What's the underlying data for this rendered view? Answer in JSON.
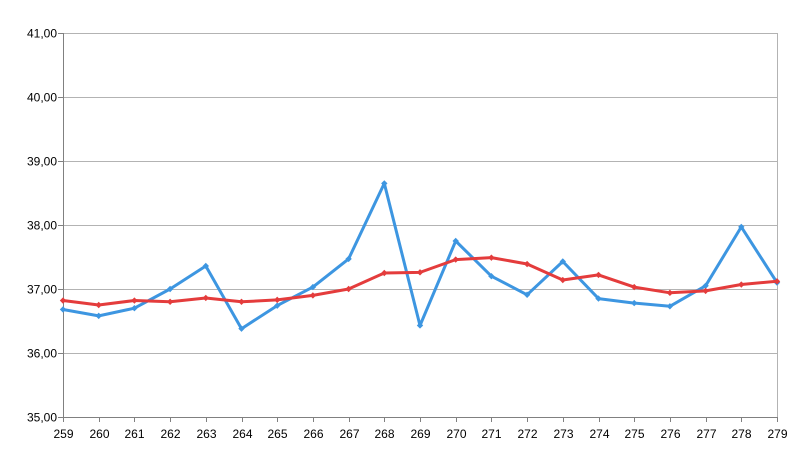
{
  "chart_data": {
    "type": "line",
    "title": "",
    "xlabel": "",
    "ylabel": "",
    "categories": [
      "259",
      "260",
      "261",
      "262",
      "263",
      "264",
      "265",
      "266",
      "267",
      "268",
      "269",
      "270",
      "271",
      "272",
      "273",
      "274",
      "275",
      "276",
      "277",
      "278",
      "279"
    ],
    "ylim": [
      35,
      41
    ],
    "yticks": [
      35,
      36,
      37,
      38,
      39,
      40,
      41
    ],
    "ytick_labels": [
      "35,00",
      "36,00",
      "37,00",
      "38,00",
      "39,00",
      "40,00",
      "41,00"
    ],
    "grid": true,
    "legend": "none",
    "series": [
      {
        "color": "#3d96e1",
        "values": [
          36.68,
          36.58,
          36.7,
          37.0,
          37.36,
          36.38,
          36.74,
          37.03,
          37.47,
          38.65,
          36.43,
          37.75,
          37.2,
          36.91,
          37.43,
          36.85,
          36.78,
          36.73,
          37.05,
          37.97,
          37.1
        ]
      },
      {
        "color": "#e43c3c",
        "values": [
          36.82,
          36.75,
          36.82,
          36.8,
          36.86,
          36.8,
          36.83,
          36.9,
          37.0,
          37.25,
          37.26,
          37.46,
          37.49,
          37.39,
          37.14,
          37.22,
          37.03,
          36.94,
          36.97,
          37.07,
          37.12
        ]
      }
    ]
  }
}
